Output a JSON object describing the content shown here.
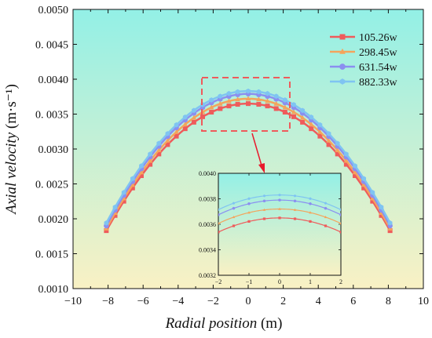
{
  "chart_data": {
    "type": "line",
    "title": "",
    "xlabel": "Radial position",
    "xlabel_unit": "(m)",
    "ylabel": "Axial velocity",
    "ylabel_unit": "(m·s⁻¹)",
    "xlim": [
      -10,
      10
    ],
    "ylim": [
      0.001,
      0.005
    ],
    "x_ticks": [
      "−10",
      "−8",
      "−6",
      "−4",
      "−2",
      "0",
      "2",
      "4",
      "6",
      "8",
      "10"
    ],
    "y_ticks": [
      "0.0010",
      "0. 0015",
      "0.0020",
      "0. 0025",
      "0.0030",
      "0. 0035",
      "0.0040",
      "0. 0045",
      "0.0050"
    ],
    "legend_position": "top-right",
    "background_gradient": [
      "#93f0e6",
      "#f9f1c4"
    ],
    "x": [
      -8.1,
      -7.6,
      -7.1,
      -6.6,
      -6.1,
      -5.6,
      -5.1,
      -4.6,
      -4.1,
      -3.6,
      -3.1,
      -2.6,
      -2.1,
      -1.6,
      -1.1,
      -0.6,
      0,
      0.6,
      1.1,
      1.6,
      2.1,
      2.6,
      3.1,
      3.6,
      4.1,
      4.6,
      5.1,
      5.6,
      6.1,
      6.6,
      7.1,
      7.6,
      8.1
    ],
    "series": [
      {
        "name": "105.26w",
        "color": "#ef5b5b",
        "marker": "square",
        "peak": 0.00365,
        "edge": 0.00183
      },
      {
        "name": "298.45w",
        "color": "#f4a45c",
        "marker": "triangle",
        "peak": 0.00372,
        "edge": 0.00186
      },
      {
        "name": "631.54w",
        "color": "#8b8ff0",
        "marker": "circle",
        "peak": 0.00379,
        "edge": 0.0019
      },
      {
        "name": "882.33w",
        "color": "#7fc4f2",
        "marker": "hexagon",
        "peak": 0.00383,
        "edge": 0.00194
      }
    ],
    "inset": {
      "xlim": [
        -2,
        2
      ],
      "ylim": [
        0.0032,
        0.004
      ],
      "x_ticks": [
        "−2",
        "−1",
        "0",
        "1",
        "2"
      ],
      "y_ticks": [
        "0.0032",
        "0.0034",
        "0.0036",
        "0.0038",
        "0.0040"
      ],
      "x": [
        -2,
        -1.5,
        -1,
        -0.5,
        0,
        0.5,
        1,
        1.5,
        2
      ]
    }
  }
}
